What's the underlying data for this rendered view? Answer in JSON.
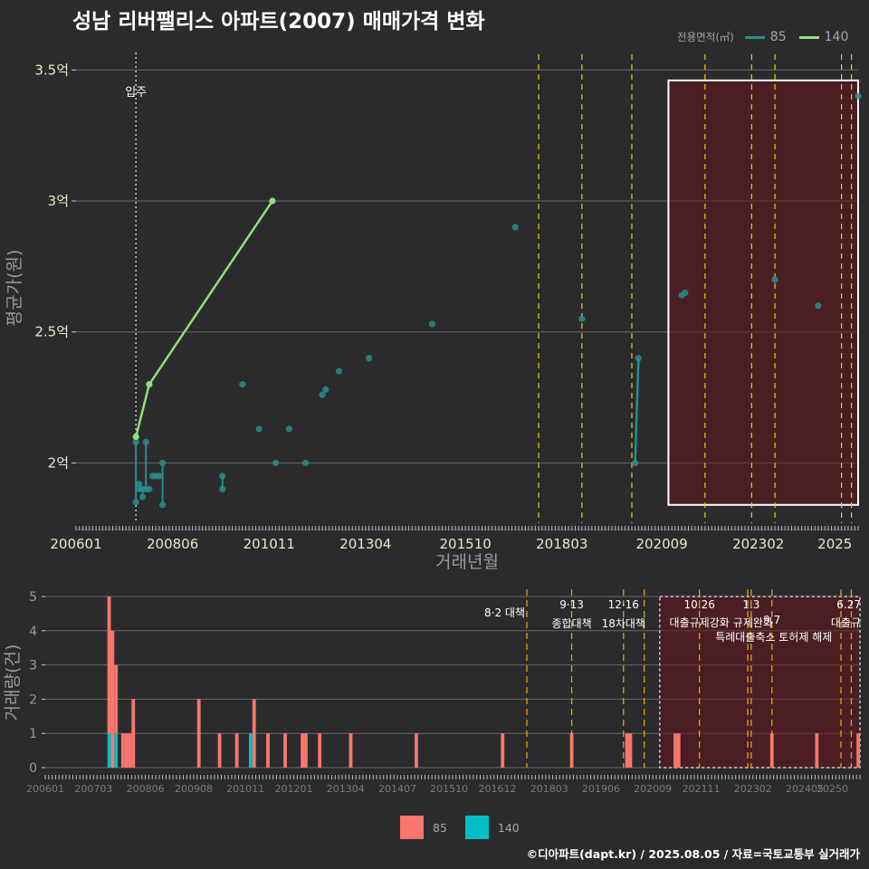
{
  "title": "성남 리버팰리스 아파트(2007) 매매가격 변화",
  "credit": "©디아파트(dapt.kr) / 2025.08.05 / 자료=국토교통부 실거래가",
  "legend_top": {
    "title": "전용면적(㎡)",
    "items": [
      {
        "label": "85",
        "color": "#2a8c8c"
      },
      {
        "label": "140",
        "color": "#8fe07c"
      }
    ]
  },
  "legend_bottom": {
    "items": [
      {
        "label": "85",
        "color": "#f8766d"
      },
      {
        "label": "140",
        "color": "#00bfc4"
      }
    ]
  },
  "chart_data": [
    {
      "type": "line",
      "title": "성남 리버팰리스 아파트(2007) 매매가격 변화",
      "xlabel": "거래년월",
      "ylabel": "평균가(원)",
      "xlim": [
        "2006-01",
        "2025-08"
      ],
      "ylim": [
        1.77,
        3.57
      ],
      "x_ticks": [
        "200601",
        "200806",
        "201011",
        "201304",
        "201510",
        "201803",
        "202009",
        "202302",
        "2025"
      ],
      "y_ticks": [
        {
          "value": 2.0,
          "label": "2억"
        },
        {
          "value": 2.5,
          "label": "2.5억"
        },
        {
          "value": 3.0,
          "label": "3억"
        },
        {
          "value": 3.5,
          "label": "3.5억"
        }
      ],
      "grid": true,
      "legend_position": "top-right",
      "annotations": [
        {
          "x": "2007-07",
          "label": "입주",
          "style": "dotted"
        }
      ],
      "policy_lines": [
        "2017-08",
        "2018-09",
        "2019-12",
        "2021-10",
        "2022-12",
        "2023-07",
        "2025-03",
        "2025-06"
      ],
      "shaded_region": {
        "x": [
          "2020-11",
          "2025-08"
        ],
        "y": [
          1.84,
          3.46
        ]
      },
      "series": [
        {
          "name": "85",
          "color": "#2a8c8c",
          "points": [
            {
              "x": "2007-07",
              "y": 1.85
            },
            {
              "x": "2007-07",
              "y": 2.08
            },
            {
              "x": "2007-08",
              "y": 1.9
            },
            {
              "x": "2007-08",
              "y": 1.92
            },
            {
              "x": "2007-09",
              "y": 1.87
            },
            {
              "x": "2007-09",
              "y": 1.9
            },
            {
              "x": "2007-10",
              "y": 2.08
            },
            {
              "x": "2007-10",
              "y": 1.9
            },
            {
              "x": "2007-11",
              "y": 1.9
            },
            {
              "x": "2007-12",
              "y": 1.95
            },
            {
              "x": "2008-01",
              "y": 1.95
            },
            {
              "x": "2008-02",
              "y": 1.95
            },
            {
              "x": "2008-03",
              "y": 2.0
            },
            {
              "x": "2008-03",
              "y": 1.84
            },
            {
              "x": "2009-09",
              "y": 1.95
            },
            {
              "x": "2009-09",
              "y": 1.9
            },
            {
              "x": "2010-03",
              "y": 2.3
            },
            {
              "x": "2010-08",
              "y": 2.13
            },
            {
              "x": "2011-01",
              "y": 2.0
            },
            {
              "x": "2011-05",
              "y": 2.13
            },
            {
              "x": "2011-10",
              "y": 2.0
            },
            {
              "x": "2012-03",
              "y": 2.26
            },
            {
              "x": "2012-04",
              "y": 2.28
            },
            {
              "x": "2012-08",
              "y": 2.35
            },
            {
              "x": "2013-05",
              "y": 2.4
            },
            {
              "x": "2014-12",
              "y": 2.53
            },
            {
              "x": "2017-01",
              "y": 2.9
            },
            {
              "x": "2018-09",
              "y": 2.55
            },
            {
              "x": "2020-01",
              "y": 2.0
            },
            {
              "x": "2020-02",
              "y": 2.4
            },
            {
              "x": "2021-03",
              "y": 2.64
            },
            {
              "x": "2021-04",
              "y": 2.65
            },
            {
              "x": "2023-07",
              "y": 2.7
            },
            {
              "x": "2024-08",
              "y": 2.6
            },
            {
              "x": "2025-08",
              "y": 3.4
            }
          ]
        },
        {
          "name": "140",
          "color": "#8fe07c",
          "points": [
            {
              "x": "2007-07",
              "y": 2.1
            },
            {
              "x": "2007-11",
              "y": 2.3
            },
            {
              "x": "2010-12",
              "y": 3.0
            }
          ]
        }
      ]
    },
    {
      "type": "bar",
      "xlabel": "",
      "ylabel": "거래량(건)",
      "ylim": [
        0,
        5
      ],
      "y_ticks": [
        0,
        1,
        2,
        3,
        4,
        5
      ],
      "x_ticks": [
        "200601",
        "200703",
        "200806",
        "200908",
        "201011",
        "201201",
        "201304",
        "201407",
        "201510",
        "201612",
        "201803",
        "201906",
        "202009",
        "202111",
        "202302",
        "202405",
        "20250"
      ],
      "series": [
        {
          "name": "85",
          "color": "#f8766d",
          "bars": [
            {
              "x": "2007-07",
              "y": 5
            },
            {
              "x": "2007-08",
              "y": 4
            },
            {
              "x": "2007-09",
              "y": 3
            },
            {
              "x": "2007-11",
              "y": 1
            },
            {
              "x": "2007-12",
              "y": 1
            },
            {
              "x": "2008-01",
              "y": 1
            },
            {
              "x": "2008-02",
              "y": 2
            },
            {
              "x": "2009-09",
              "y": 2
            },
            {
              "x": "2010-03",
              "y": 1
            },
            {
              "x": "2010-08",
              "y": 1
            },
            {
              "x": "2011-01",
              "y": 2
            },
            {
              "x": "2011-05",
              "y": 1
            },
            {
              "x": "2011-10",
              "y": 1
            },
            {
              "x": "2012-03",
              "y": 1
            },
            {
              "x": "2012-04",
              "y": 1
            },
            {
              "x": "2012-08",
              "y": 1
            },
            {
              "x": "2013-05",
              "y": 1
            },
            {
              "x": "2014-12",
              "y": 1
            },
            {
              "x": "2017-01",
              "y": 1
            },
            {
              "x": "2018-09",
              "y": 1
            },
            {
              "x": "2020-01",
              "y": 1
            },
            {
              "x": "2020-02",
              "y": 1
            },
            {
              "x": "2021-03",
              "y": 1
            },
            {
              "x": "2021-04",
              "y": 1
            },
            {
              "x": "2023-07",
              "y": 1
            },
            {
              "x": "2024-08",
              "y": 1
            },
            {
              "x": "2025-08",
              "y": 1
            }
          ]
        },
        {
          "name": "140",
          "color": "#00bfc4",
          "bars": [
            {
              "x": "2007-07",
              "y": 1
            },
            {
              "x": "2007-09",
              "y": 1
            },
            {
              "x": "2010-12",
              "y": 1
            }
          ]
        }
      ],
      "shaded_region": {
        "x": [
          "2020-11",
          "2025-08"
        ]
      },
      "policy_lines": [
        {
          "x": "2017-08",
          "labels": [
            "8·2 대책"
          ]
        },
        {
          "x": "2018-09",
          "labels": [
            "9·13",
            "종합대책"
          ]
        },
        {
          "x": "2019-12",
          "labels": [
            "12·16",
            "18차대책"
          ]
        },
        {
          "x": "2020-06",
          "labels": []
        },
        {
          "x": "2021-10",
          "labels": [
            "10.26",
            "대출규제강화"
          ]
        },
        {
          "x": "2022-12",
          "labels": []
        },
        {
          "x": "2023-01",
          "labels": [
            "1.3",
            "규제완화"
          ]
        },
        {
          "x": "2023-07",
          "labels": [
            "9.7",
            "특례대출축소 토허제 해제"
          ]
        },
        {
          "x": "2025-03",
          "labels": []
        },
        {
          "x": "2025-06",
          "labels": [
            "6.27",
            "대출규"
          ]
        }
      ]
    }
  ]
}
